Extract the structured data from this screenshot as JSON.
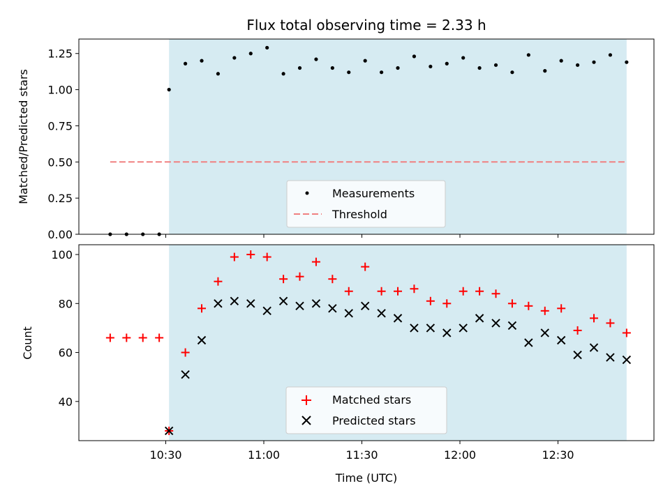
{
  "chart_data": [
    {
      "type": "scatter",
      "title": "Flux total observing time = 2.33 h",
      "xlabel": "",
      "ylabel": "Matched/Predicted stars",
      "ylim": [
        0,
        1.35
      ],
      "yticks": [
        "0.00",
        "0.25",
        "0.50",
        "0.75",
        "1.00",
        "1.25"
      ],
      "xticks": [
        "10:30",
        "11:00",
        "11:30",
        "12:00",
        "12:30"
      ],
      "shaded_region": {
        "x_start": "10:31",
        "x_end": "12:51",
        "color": "#add8e6"
      },
      "legend": {
        "placement": "lower-center"
      },
      "x": [
        "10:13",
        "10:18",
        "10:23",
        "10:28",
        "10:31",
        "10:36",
        "10:41",
        "10:46",
        "10:51",
        "10:56",
        "11:01",
        "11:06",
        "11:11",
        "11:16",
        "11:21",
        "11:26",
        "11:31",
        "11:36",
        "11:41",
        "11:46",
        "11:51",
        "11:56",
        "12:01",
        "12:06",
        "12:11",
        "12:16",
        "12:21",
        "12:26",
        "12:31",
        "12:36",
        "12:41",
        "12:46",
        "12:51"
      ],
      "series": [
        {
          "name": "Measurements",
          "marker": "dot",
          "color": "#000000",
          "values": [
            0,
            0,
            0,
            0,
            1.0,
            1.18,
            1.2,
            1.11,
            1.22,
            1.25,
            1.29,
            1.11,
            1.15,
            1.21,
            1.15,
            1.12,
            1.2,
            1.12,
            1.15,
            1.23,
            1.16,
            1.18,
            1.22,
            1.15,
            1.17,
            1.12,
            1.24,
            1.13,
            1.2,
            1.17,
            1.19,
            1.24,
            1.19
          ]
        },
        {
          "name": "Threshold",
          "style": "dashed",
          "color": "#f08080",
          "x": [
            "10:13",
            "12:51"
          ],
          "values": [
            0.5,
            0.5
          ]
        }
      ]
    },
    {
      "type": "scatter",
      "title": "",
      "xlabel": "Time (UTC)",
      "ylabel": "Count",
      "ylim": [
        24,
        104
      ],
      "yticks": [
        "40",
        "60",
        "80",
        "100"
      ],
      "xticks": [
        "10:30",
        "11:00",
        "11:30",
        "12:00",
        "12:30"
      ],
      "shaded_region": {
        "x_start": "10:31",
        "x_end": "12:51",
        "color": "#add8e6"
      },
      "legend": {
        "placement": "lower-center"
      },
      "x": [
        "10:13",
        "10:18",
        "10:23",
        "10:28",
        "10:31",
        "10:36",
        "10:41",
        "10:46",
        "10:51",
        "10:56",
        "11:01",
        "11:06",
        "11:11",
        "11:16",
        "11:21",
        "11:26",
        "11:31",
        "11:36",
        "11:41",
        "11:46",
        "11:51",
        "11:56",
        "12:01",
        "12:06",
        "12:11",
        "12:16",
        "12:21",
        "12:26",
        "12:31",
        "12:36",
        "12:41",
        "12:46",
        "12:51"
      ],
      "series": [
        {
          "name": "Matched stars",
          "marker": "plus",
          "color": "#ff0000",
          "values": [
            66,
            66,
            66,
            66,
            28,
            60,
            78,
            89,
            99,
            100,
            99,
            90,
            91,
            97,
            90,
            85,
            95,
            85,
            85,
            86,
            81,
            80,
            85,
            85,
            84,
            80,
            79,
            77,
            78,
            69,
            74,
            72,
            68
          ]
        },
        {
          "name": "Predicted stars",
          "marker": "x",
          "color": "#000000",
          "values": [
            null,
            null,
            null,
            null,
            28,
            51,
            65,
            80,
            81,
            80,
            77,
            81,
            79,
            80,
            78,
            76,
            79,
            76,
            74,
            70,
            70,
            68,
            70,
            74,
            72,
            71,
            64,
            68,
            65,
            59,
            62,
            58,
            57
          ]
        }
      ]
    }
  ]
}
